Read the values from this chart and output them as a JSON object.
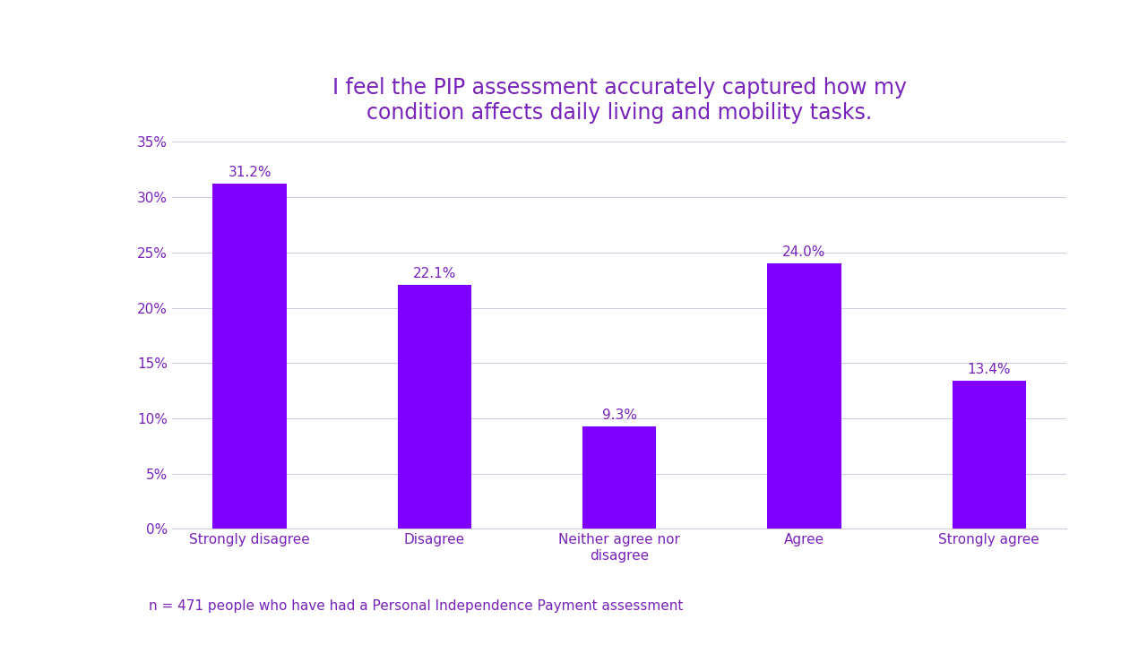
{
  "title": "I feel the PIP assessment accurately captured how my\ncondition affects daily living and mobility tasks.",
  "categories": [
    "Strongly disagree",
    "Disagree",
    "Neither agree nor\ndisagree",
    "Agree",
    "Strongly agree"
  ],
  "values": [
    31.2,
    22.1,
    9.3,
    24.0,
    13.4
  ],
  "bar_color": "#8000ff",
  "title_color": "#7722bb",
  "tick_label_color": "#7722bb",
  "note_text": "n = 471 people who have had a Personal Independence Payment assessment",
  "note_color": "#7722bb",
  "ylim": [
    0,
    35
  ],
  "yticks": [
    0,
    5,
    10,
    15,
    20,
    25,
    30,
    35
  ],
  "background_color": "#ffffff",
  "grid_color": "#d0cce0",
  "title_fontsize": 17,
  "tick_fontsize": 11,
  "note_fontsize": 11,
  "bar_label_fontsize": 11
}
